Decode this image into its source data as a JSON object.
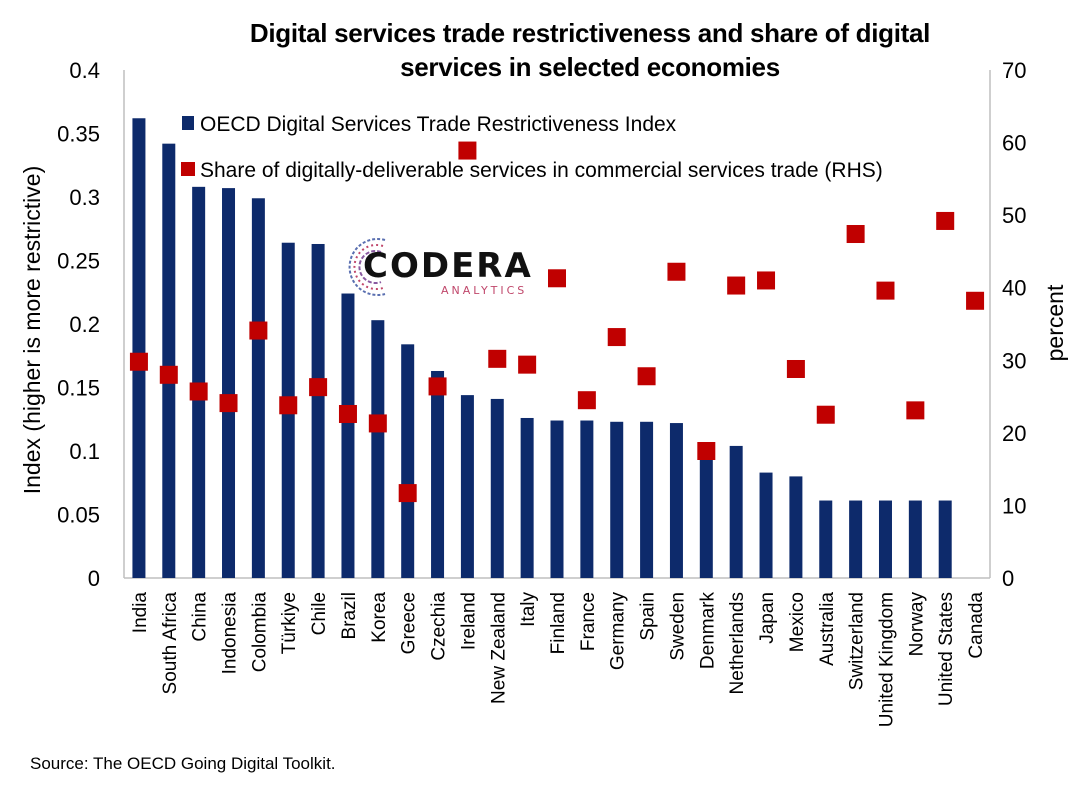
{
  "title_line1": "Digital services trade restrictiveness and share of digital",
  "title_line2": "services in selected economies",
  "source": "Source: The OECD Going Digital Toolkit.",
  "logo": {
    "word": "CODERA",
    "sub": "ANALYTICS"
  },
  "colors": {
    "bars": "#0d2a6b",
    "markers": "#c00000",
    "axis": "#bfbfbf"
  },
  "chart_data": {
    "type": "bar",
    "categories": [
      "India",
      "South Africa",
      "China",
      "Indonesia",
      "Colombia",
      "Türkiye",
      "Chile",
      "Brazil",
      "Korea",
      "Greece",
      "Czechia",
      "Ireland",
      "New Zealand",
      "Italy",
      "Finland",
      "France",
      "Germany",
      "Spain",
      "Sweden",
      "Denmark",
      "Netherlands",
      "Japan",
      "Mexico",
      "Australia",
      "Switzerland",
      "United Kingdom",
      "Norway",
      "United States",
      "Canada"
    ],
    "series": [
      {
        "name": "OECD Digital Services Trade Restrictiveness Index",
        "type": "bar",
        "axis": "left",
        "values": [
          0.362,
          0.342,
          0.308,
          0.307,
          0.299,
          0.264,
          0.263,
          0.224,
          0.203,
          0.184,
          0.163,
          0.144,
          0.141,
          0.126,
          0.124,
          0.124,
          0.123,
          0.123,
          0.122,
          0.104,
          0.104,
          0.083,
          0.08,
          0.061,
          0.061,
          0.061,
          0.061,
          0.061,
          null
        ]
      },
      {
        "name": "Share of digitally-deliverable services in commercial services trade (RHS)",
        "type": "scatter",
        "axis": "right",
        "values": [
          29.8,
          28.0,
          25.7,
          24.1,
          34.1,
          23.8,
          26.3,
          22.6,
          21.3,
          11.7,
          26.4,
          58.9,
          30.2,
          29.4,
          41.3,
          24.5,
          33.2,
          27.8,
          42.2,
          17.5,
          40.3,
          41.0,
          28.8,
          22.5,
          47.4,
          39.6,
          23.1,
          49.2,
          38.2
        ]
      }
    ],
    "ylabel": "Index (higher is more restrictive)",
    "y2label": "percent",
    "ylim": [
      0,
      0.4
    ],
    "y2lim": [
      0,
      70
    ],
    "yticks": [
      "0",
      "0.05",
      "0.1",
      "0.15",
      "0.2",
      "0.25",
      "0.3",
      "0.35",
      "0.4"
    ],
    "y2ticks": [
      "0",
      "10",
      "20",
      "30",
      "40",
      "50",
      "60",
      "70"
    ],
    "legend": "top-left inside",
    "grid": false
  }
}
